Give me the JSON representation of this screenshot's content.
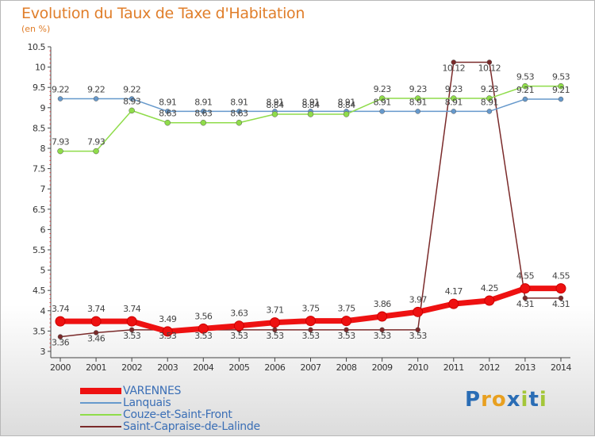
{
  "title": "Evolution du Taux de Taxe d'Habitation",
  "subtitle": "(en %)",
  "logo": {
    "text": "Proxiti",
    "colors": [
      "#2a6db5",
      "#e8a020",
      "#e8a020",
      "#2a6db5",
      "#a4c639",
      "#2a6db5",
      "#a4c639"
    ]
  },
  "chart_data": {
    "type": "line",
    "x": [
      "2000",
      "2001",
      "2002",
      "2003",
      "2004",
      "2005",
      "2006",
      "2007",
      "2008",
      "2009",
      "2010",
      "2011",
      "2012",
      "2013",
      "2014"
    ],
    "ylim": [
      3,
      10.5
    ],
    "y_ticks": [
      "3",
      "3.5",
      "4",
      "4.5",
      "5",
      "5.5",
      "6",
      "6.5",
      "7",
      "7.5",
      "8",
      "8.5",
      "9",
      "9.5",
      "10",
      "10.5"
    ],
    "grid": false,
    "legend_position": "bottom-left",
    "series": [
      {
        "name": "VARENNES",
        "color": "#ee1111",
        "values": [
          3.74,
          3.74,
          3.74,
          3.49,
          3.56,
          3.63,
          3.71,
          3.75,
          3.75,
          3.86,
          3.97,
          4.17,
          4.25,
          4.55,
          4.55
        ],
        "labels": [
          "3.74",
          "3.74",
          "3.74",
          "3.49",
          "3.56",
          "3.63",
          "3.71",
          "3.75",
          "3.75",
          "3.86",
          "3.97",
          "4.17",
          "4.25",
          "4.55",
          "4.55"
        ]
      },
      {
        "name": "Lanquais",
        "color": "#6699cc",
        "values": [
          9.22,
          9.22,
          9.22,
          8.91,
          8.91,
          8.91,
          8.91,
          8.91,
          8.91,
          8.91,
          8.91,
          8.91,
          8.91,
          9.21,
          9.21
        ],
        "labels": [
          "9.22",
          "9.22",
          "9.22",
          "8.91",
          "8.91",
          "8.91",
          "8.91",
          "8.91",
          "8.91",
          "8.91",
          "8.91",
          "8.91",
          "8.91",
          "9.21",
          "9.21"
        ]
      },
      {
        "name": "Couze-et-Saint-Front",
        "color": "#8fdc4a",
        "values": [
          7.93,
          7.93,
          8.93,
          8.63,
          8.63,
          8.63,
          8.84,
          8.84,
          8.84,
          9.23,
          9.23,
          9.23,
          9.23,
          9.53,
          9.53
        ],
        "labels": [
          "7.93",
          "7.93",
          "8.93",
          "8.63",
          "8.63",
          "8.63",
          "8.84",
          "8.84",
          "8.84",
          "9.23",
          "9.23",
          "9.23",
          "9.23",
          "9.53",
          "9.53"
        ]
      },
      {
        "name": "Saint-Capraise-de-Lalinde",
        "color": "#7a2a2a",
        "values": [
          3.36,
          3.46,
          3.53,
          3.53,
          3.53,
          3.53,
          3.53,
          3.53,
          3.53,
          3.53,
          3.53,
          10.12,
          10.12,
          4.31,
          4.31
        ],
        "labels": [
          "3.36",
          "3.46",
          "3.53",
          "3.53",
          "3.53",
          "3.53",
          "3.53",
          "3.53",
          "3.53",
          "3.53",
          "3.53",
          "10.12",
          "10.12",
          "4.31",
          "4.31"
        ]
      }
    ]
  }
}
